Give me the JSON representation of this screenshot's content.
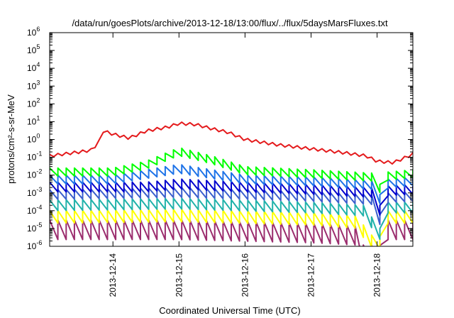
{
  "chart_data": {
    "type": "line",
    "title": "/data/run/goesPlots/archive/2013-12-18/13:00/flux/../flux/5daysMarsFluxes.txt",
    "xlabel": "Coordinated Universal Time (UTC)",
    "ylabel": "protons/cm²-s-sr-MeV",
    "y_scale": "log",
    "ylim": [
      "1e-6",
      "1e6"
    ],
    "xlim": [
      "2013-12-13T01:00",
      "2013-12-18T13:00"
    ],
    "y_ticks": [
      {
        "value": "1e-6",
        "base": "10",
        "exp": "-6"
      },
      {
        "value": "1e-5",
        "base": "10",
        "exp": "-5"
      },
      {
        "value": "1e-4",
        "base": "10",
        "exp": "-4"
      },
      {
        "value": "1e-3",
        "base": "10",
        "exp": "-3"
      },
      {
        "value": "1e-2",
        "base": "10",
        "exp": "-2"
      },
      {
        "value": "1e-1",
        "base": "10",
        "exp": "-1"
      },
      {
        "value": "1e0",
        "base": "10",
        "exp": "0"
      },
      {
        "value": "1e1",
        "base": "10",
        "exp": "1"
      },
      {
        "value": "1e2",
        "base": "10",
        "exp": "2"
      },
      {
        "value": "1e3",
        "base": "10",
        "exp": "3"
      },
      {
        "value": "1e4",
        "base": "10",
        "exp": "4"
      },
      {
        "value": "1e5",
        "base": "10",
        "exp": "5"
      },
      {
        "value": "1e6",
        "base": "10",
        "exp": "6"
      }
    ],
    "x_ticks": [
      {
        "label": "2013-12-14",
        "date": "2013-12-14T00:00"
      },
      {
        "label": "2013-12-15",
        "date": "2013-12-15T00:00"
      },
      {
        "label": "2013-12-16",
        "date": "2013-12-16T00:00"
      },
      {
        "label": "2013-12-17",
        "date": "2013-12-17T00:00"
      },
      {
        "label": "2013-12-18",
        "date": "2013-12-18T00:00"
      }
    ],
    "grid": false,
    "legend": "none",
    "sample_interval_hours": 3,
    "series": [
      {
        "color": "#e41a1c",
        "sawtooth": false,
        "keys": [
          {
            "t": "2013-12-13T01:00",
            "v": "0.12"
          },
          {
            "t": "2013-12-13T12:00",
            "v": "0.2"
          },
          {
            "t": "2013-12-13T16:00",
            "v": "0.25"
          },
          {
            "t": "2013-12-13T18:00",
            "v": "0.5"
          },
          {
            "t": "2013-12-13T19:30",
            "v": "1"
          },
          {
            "t": "2013-12-13T20:30",
            "v": "3"
          },
          {
            "t": "2013-12-14T00:00",
            "v": "2"
          },
          {
            "t": "2013-12-14T06:00",
            "v": "1.2"
          },
          {
            "t": "2013-12-14T12:00",
            "v": "3"
          },
          {
            "t": "2013-12-14T20:00",
            "v": "5"
          },
          {
            "t": "2013-12-15T00:00",
            "v": "8"
          },
          {
            "t": "2013-12-15T06:00",
            "v": "7"
          },
          {
            "t": "2013-12-15T12:00",
            "v": "4"
          },
          {
            "t": "2013-12-15T18:00",
            "v": "2.5"
          },
          {
            "t": "2013-12-16T00:00",
            "v": "1"
          },
          {
            "t": "2013-12-16T12:00",
            "v": "0.5"
          },
          {
            "t": "2013-12-17T00:00",
            "v": "0.3"
          },
          {
            "t": "2013-12-17T12:00",
            "v": "0.18"
          },
          {
            "t": "2013-12-17T20:00",
            "v": "0.12"
          },
          {
            "t": "2013-12-18T00:00",
            "v": "0.06"
          },
          {
            "t": "2013-12-18T06:00",
            "v": "0.05"
          },
          {
            "t": "2013-12-18T13:00",
            "v": "0.15"
          }
        ]
      },
      {
        "color": "#00ff00",
        "sawtooth": true,
        "amplitude_decades": "0.45",
        "keys": [
          {
            "t": "2013-12-13T01:00",
            "v": "0.025"
          },
          {
            "t": "2013-12-14T00:00",
            "v": "0.025"
          },
          {
            "t": "2013-12-14T12:00",
            "v": "0.06"
          },
          {
            "t": "2013-12-15T00:00",
            "v": "0.35"
          },
          {
            "t": "2013-12-15T12:00",
            "v": "0.12"
          },
          {
            "t": "2013-12-16T00:00",
            "v": "0.03"
          },
          {
            "t": "2013-12-17T00:00",
            "v": "0.02"
          },
          {
            "t": "2013-12-17T22:00",
            "v": "0.013"
          },
          {
            "t": "2013-12-18T00:00",
            "v": "0.003"
          },
          {
            "t": "2013-12-18T03:00",
            "v": "0.003"
          },
          {
            "t": "2013-12-18T04:00",
            "v": "0.015"
          },
          {
            "t": "2013-12-18T13:00",
            "v": "0.02"
          }
        ]
      },
      {
        "color": "#1e73e8",
        "sawtooth": true,
        "amplitude_decades": "0.5",
        "keys": [
          {
            "t": "2013-12-13T01:00",
            "v": "0.01"
          },
          {
            "t": "2013-12-14T00:00",
            "v": "0.01"
          },
          {
            "t": "2013-12-14T12:00",
            "v": "0.02"
          },
          {
            "t": "2013-12-15T00:00",
            "v": "0.04"
          },
          {
            "t": "2013-12-15T12:00",
            "v": "0.02"
          },
          {
            "t": "2013-12-16T00:00",
            "v": "0.01"
          },
          {
            "t": "2013-12-17T00:00",
            "v": "0.008"
          },
          {
            "t": "2013-12-17T22:00",
            "v": "0.005"
          },
          {
            "t": "2013-12-18T00:00",
            "v": "0.0008"
          },
          {
            "t": "2013-12-18T03:00",
            "v": "0.0008"
          },
          {
            "t": "2013-12-18T04:00",
            "v": "0.006"
          },
          {
            "t": "2013-12-18T13:00",
            "v": "0.008"
          }
        ]
      },
      {
        "color": "#0000cd",
        "sawtooth": true,
        "amplitude_decades": "0.55",
        "keys": [
          {
            "t": "2013-12-13T01:00",
            "v": "0.004"
          },
          {
            "t": "2013-12-14T12:00",
            "v": "0.004"
          },
          {
            "t": "2013-12-15T00:00",
            "v": "0.006"
          },
          {
            "t": "2013-12-16T00:00",
            "v": "0.004"
          },
          {
            "t": "2013-12-17T00:00",
            "v": "0.003"
          },
          {
            "t": "2013-12-17T22:00",
            "v": "0.002"
          },
          {
            "t": "2013-12-18T00:00",
            "v": "0.0002"
          },
          {
            "t": "2013-12-18T03:00",
            "v": "0.0002"
          },
          {
            "t": "2013-12-18T04:00",
            "v": "0.0025"
          },
          {
            "t": "2013-12-18T13:00",
            "v": "0.003"
          }
        ]
      },
      {
        "color": "#3a5fcd",
        "sawtooth": true,
        "amplitude_decades": "0.55",
        "keys": [
          {
            "t": "2013-12-13T01:00",
            "v": "0.0015"
          },
          {
            "t": "2013-12-15T00:00",
            "v": "0.002"
          },
          {
            "t": "2013-12-17T00:00",
            "v": "0.0012"
          },
          {
            "t": "2013-12-17T22:00",
            "v": "0.0008"
          },
          {
            "t": "2013-12-18T00:00",
            "v": "0.00006"
          },
          {
            "t": "2013-12-18T03:00",
            "v": "0.00006"
          },
          {
            "t": "2013-12-18T04:00",
            "v": "0.001"
          },
          {
            "t": "2013-12-18T13:00",
            "v": "0.0012"
          }
        ]
      },
      {
        "color": "#20b2aa",
        "sawtooth": true,
        "amplitude_decades": "0.6",
        "keys": [
          {
            "t": "2013-12-13T01:00",
            "v": "0.0004"
          },
          {
            "t": "2013-12-15T00:00",
            "v": "0.0005"
          },
          {
            "t": "2013-12-17T00:00",
            "v": "0.0003"
          },
          {
            "t": "2013-12-17T20:00",
            "v": "0.0002"
          },
          {
            "t": "2013-12-18T00:00",
            "v": "0.00001"
          },
          {
            "t": "2013-12-18T03:00",
            "v": "0.00001"
          },
          {
            "t": "2013-12-18T04:00",
            "v": "0.0003"
          },
          {
            "t": "2013-12-18T13:00",
            "v": "0.0003"
          }
        ]
      },
      {
        "color": "#ffff00",
        "sawtooth": true,
        "amplitude_decades": "0.7",
        "keys": [
          {
            "t": "2013-12-13T01:00",
            "v": "0.0001"
          },
          {
            "t": "2013-12-15T00:00",
            "v": "0.00012"
          },
          {
            "t": "2013-12-17T00:00",
            "v": "0.00008"
          },
          {
            "t": "2013-12-17T18:00",
            "v": "0.00005"
          },
          {
            "t": "2013-12-17T20:00",
            "v": "0.000005"
          },
          {
            "t": "2013-12-18T03:00",
            "v": "0.000003"
          },
          {
            "t": "2013-12-18T04:00",
            "v": "0.0001"
          },
          {
            "t": "2013-12-18T13:00",
            "v": "0.0001"
          }
        ]
      },
      {
        "color": "#9b2d6e",
        "sawtooth": true,
        "amplitude_decades": "1.1",
        "keys": [
          {
            "t": "2013-12-13T01:00",
            "v": "0.00003"
          },
          {
            "t": "2013-12-15T00:00",
            "v": "0.00003"
          },
          {
            "t": "2013-12-17T00:00",
            "v": "0.00002"
          },
          {
            "t": "2013-12-17T16:00",
            "v": "0.000015"
          },
          {
            "t": "2013-12-17T18:00",
            "v": "0.0000012"
          },
          {
            "t": "2013-12-18T03:00",
            "v": "0.0000011"
          },
          {
            "t": "2013-12-18T04:00",
            "v": "0.00003"
          },
          {
            "t": "2013-12-18T13:00",
            "v": "0.00003"
          }
        ]
      }
    ]
  }
}
